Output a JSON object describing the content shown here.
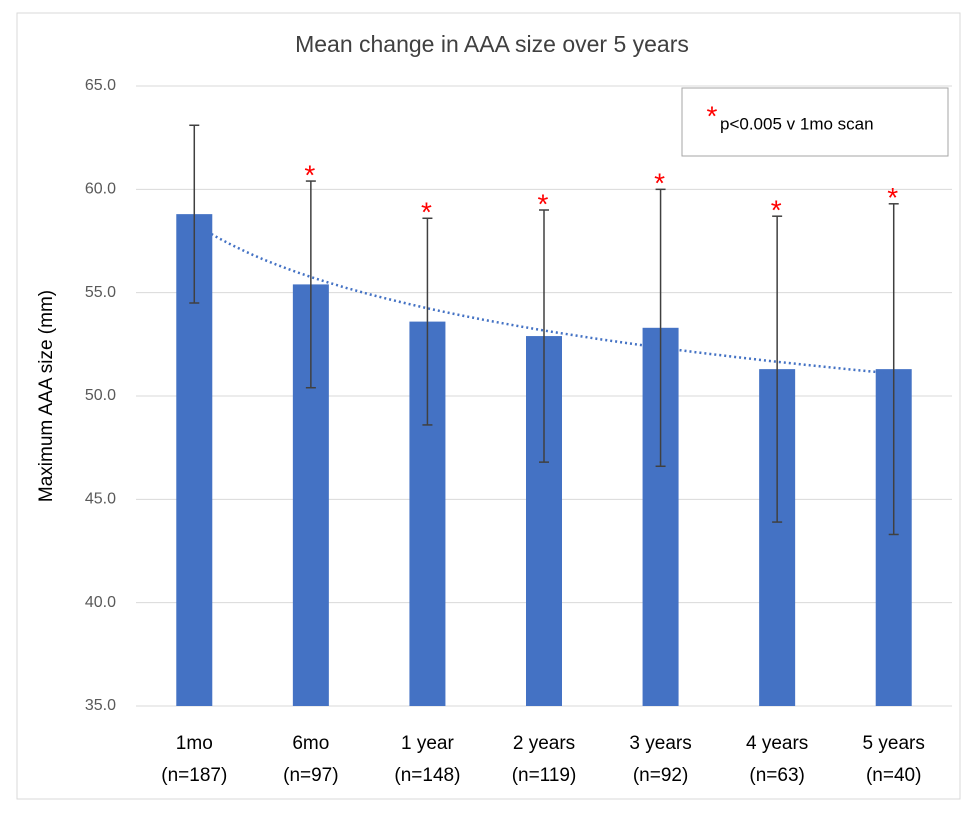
{
  "chart_data": {
    "type": "bar",
    "title": "Mean change in AAA size over 5 years",
    "y_label": "Maximum AAA size (mm)",
    "categories": [
      "1mo",
      "6mo",
      "1 year",
      "2 years",
      "3 years",
      "4 years",
      "5 years"
    ],
    "category_sublabels": [
      "(n=187)",
      "(n=97)",
      "(n=148)",
      "(n=119)",
      "(n=92)",
      "(n=63)",
      "(n=40)"
    ],
    "values": [
      58.8,
      55.4,
      53.6,
      52.9,
      53.3,
      51.3,
      51.3
    ],
    "errors": [
      4.3,
      5.0,
      5.0,
      6.1,
      6.7,
      7.4,
      8.0
    ],
    "significance": [
      null,
      "*",
      "*",
      "*",
      "*",
      "*",
      "*"
    ],
    "color": "#4472c4",
    "error_color": "#404040",
    "significance_color": "#ff0000",
    "trendline": {
      "type": "logarithmic",
      "color": "#4472c4"
    },
    "legend_note": {
      "symbol": "*",
      "text": "p<0.005 v 1mo scan"
    },
    "legend_position": "upper right",
    "ylim": [
      35,
      65
    ],
    "yticks": [
      {
        "value": 35,
        "label": "35.0"
      },
      {
        "value": 40,
        "label": "40.0"
      },
      {
        "value": 45,
        "label": "45.0"
      },
      {
        "value": 50,
        "label": "50.0"
      },
      {
        "value": 55,
        "label": "55.0"
      },
      {
        "value": 60,
        "label": "60.0"
      },
      {
        "value": 65,
        "label": "65.0"
      }
    ],
    "grid": true
  }
}
